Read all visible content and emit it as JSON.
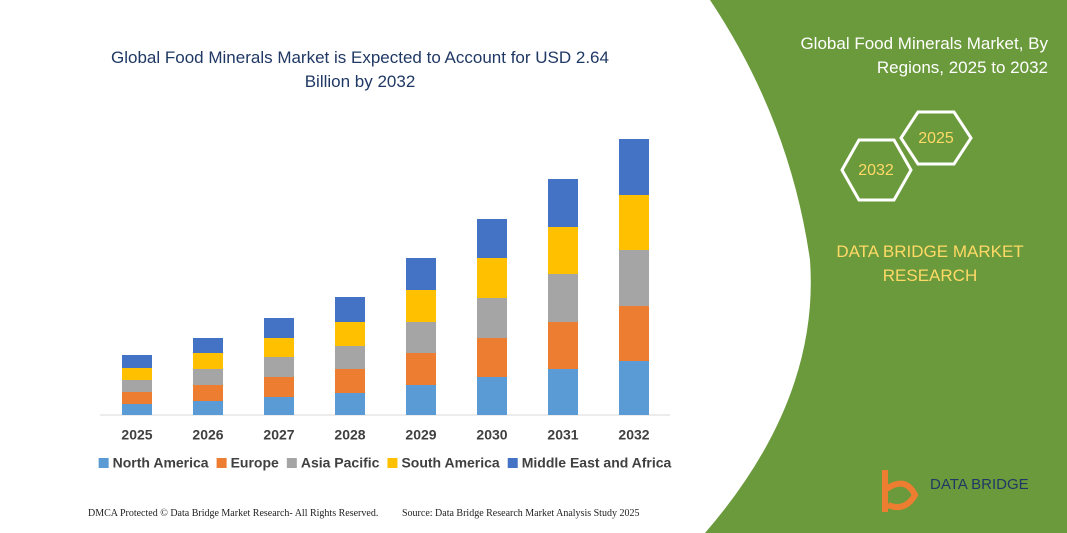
{
  "chart_data": {
    "type": "stacked-bar",
    "title": "Global Food Minerals Market is Expected to Account for USD 2.64 Billion by 2032",
    "categories": [
      "2025",
      "2026",
      "2027",
      "2028",
      "2029",
      "2030",
      "2031",
      "2032"
    ],
    "series": [
      {
        "name": "North America",
        "color": "#5b9bd5",
        "values": [
          11,
          14,
          18,
          22,
          30,
          38,
          46,
          54
        ]
      },
      {
        "name": "Europe",
        "color": "#ed7d31",
        "values": [
          12,
          16,
          20,
          24,
          32,
          39,
          47,
          55
        ]
      },
      {
        "name": "Asia Pacific",
        "color": "#a5a5a5",
        "values": [
          12,
          16,
          20,
          23,
          31,
          40,
          48,
          56
        ]
      },
      {
        "name": "South America",
        "color": "#ffc000",
        "values": [
          12,
          16,
          19,
          24,
          32,
          40,
          47,
          55
        ]
      },
      {
        "name": "Middle East and Africa",
        "color": "#4472c4",
        "values": [
          13,
          15,
          20,
          25,
          32,
          39,
          48,
          56
        ]
      }
    ]
  },
  "panel": {
    "title": "Global Food Minerals Market, By Regions, 2025 to 2032",
    "hex_right": "2025",
    "hex_left": "2032",
    "brand": "DATA BRIDGE MARKET RESEARCH",
    "logo": "DATA BRIDGE"
  },
  "footer": {
    "left": "DMCA Protected © Data Bridge Market Research- All Rights Reserved.",
    "right": "Source: Data Bridge Research Market Analysis Study 2025"
  }
}
